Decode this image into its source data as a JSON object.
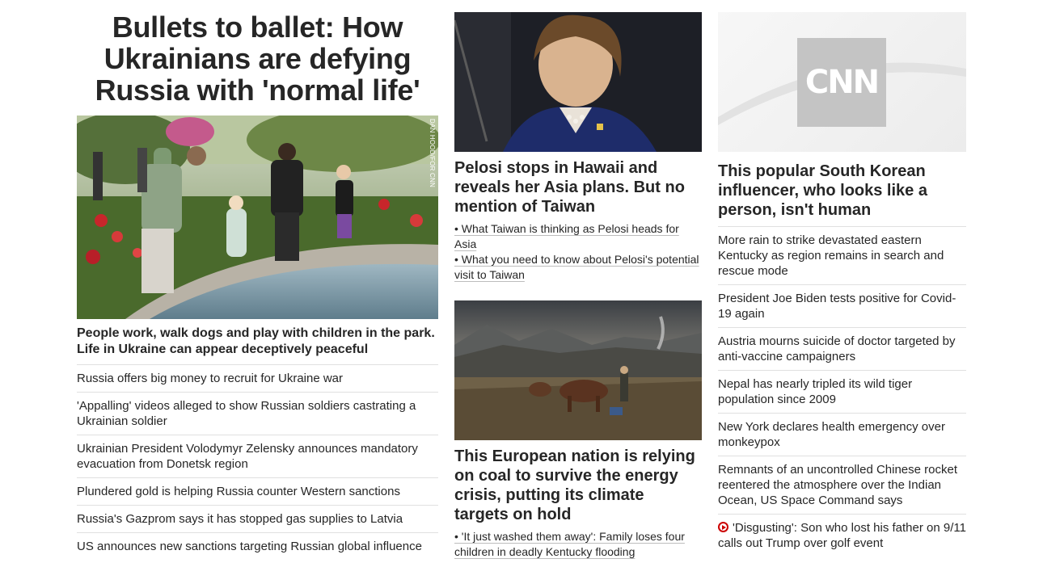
{
  "left": {
    "headline": "Bullets to ballet: How Ukrainians are defying Russia with 'normal life'",
    "photo_credit": "DAN HOOD/FOR CNN",
    "caption": "People work, walk dogs and play with children in the park. Life in Ukraine can appear deceptively peaceful",
    "stories": [
      "Russia offers big money to recruit for Ukraine war",
      "'Appalling' videos alleged to show Russian soldiers castrating a Ukrainian soldier",
      "Ukrainian President Volodymyr Zelensky announces mandatory evacuation from Donetsk region",
      "Plundered gold is helping Russia counter Western sanctions",
      "Russia's Gazprom says it has stopped gas supplies to Latvia",
      "US announces new sanctions targeting Russian global influence"
    ]
  },
  "middle": {
    "story1": {
      "headline": "Pelosi stops in Hawaii and reveals her Asia plans. But no mention of Taiwan",
      "links": [
        "• What Taiwan is thinking as Pelosi heads for Asia",
        "• What you need to know about Pelosi's potential visit to Taiwan"
      ]
    },
    "story2": {
      "headline": "This European nation is relying on coal to survive the energy crisis, putting its climate targets on hold",
      "links": [
        "• 'It just washed them away': Family loses four children in deadly Kentucky flooding"
      ]
    }
  },
  "right": {
    "logo_text": "CNN",
    "headline": "This popular South Korean influencer, who looks like a person, isn't human",
    "stories": [
      "More rain to strike devastated eastern Kentucky as region remains in search and rescue mode",
      "President Joe Biden tests positive for Covid-19 again",
      "Austria mourns suicide of doctor targeted by anti-vaccine campaigners",
      "Nepal has nearly tripled its wild tiger population since 2009",
      "New York declares health emergency over monkeypox",
      "Remnants of an uncontrolled Chinese rocket reentered the atmosphere over the Indian Ocean, US Space Command says"
    ],
    "video_story": "'Disgusting': Son who lost his father on 9/11 calls out Trump over golf event",
    "video_icon": "play-circle-icon"
  }
}
